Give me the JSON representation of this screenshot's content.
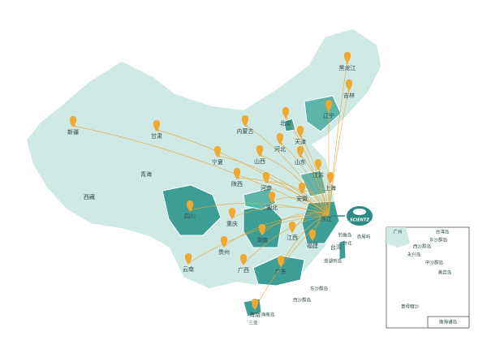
{
  "map": {
    "provinces": [
      "黑龙江",
      "吉林",
      "辽宁",
      "北京",
      "天津",
      "内蒙古",
      "河北",
      "山西",
      "山东",
      "新疆",
      "甘肃",
      "宁夏",
      "青海",
      "西藏",
      "陕西",
      "河南",
      "江苏",
      "安徽",
      "上海",
      "湖北",
      "四川",
      "重庆",
      "湖南",
      "江西",
      "浙江",
      "福建",
      "贵州",
      "云南",
      "广西",
      "广东",
      "海南",
      "台湾"
    ],
    "logo": "SCIENTZ",
    "islands": [
      "钓鱼岛",
      "赤尾屿",
      "台北",
      "澎湖列岛",
      "东沙群岛",
      "西沙群岛",
      "海南岛",
      "三亚"
    ],
    "inset_title": "南海诸岛",
    "inset_labels": [
      "广州",
      "台湾岛",
      "东沙群岛",
      "西沙群岛",
      "永兴岛",
      "中沙群岛",
      "黄岩岛",
      "曾母暗沙"
    ]
  }
}
